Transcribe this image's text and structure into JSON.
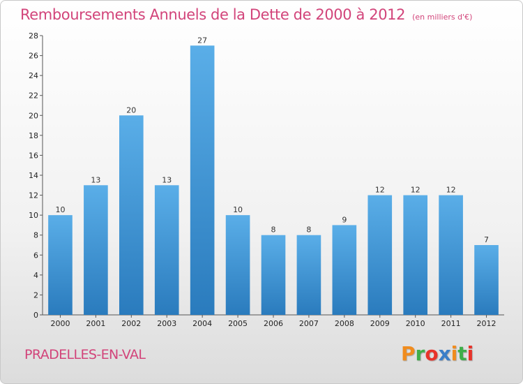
{
  "header": {
    "title": "Remboursements Annuels de la Dette de 2000 à 2012",
    "subtitle": "(en milliers d'€)"
  },
  "footer": {
    "commune": "PRADELLES-EN-VAL",
    "logo_text": "Proxiti",
    "logo_colors": [
      "#f08c1e",
      "#3fae49",
      "#e8332a",
      "#3a7ec8",
      "#f08c1e",
      "#3fae49",
      "#e8332a"
    ]
  },
  "chart_data": {
    "type": "bar",
    "title": "Remboursements Annuels de la Dette de 2000 à 2012",
    "xlabel": "",
    "ylabel": "",
    "categories": [
      "2000",
      "2001",
      "2002",
      "2003",
      "2004",
      "2005",
      "2006",
      "2007",
      "2008",
      "2009",
      "2010",
      "2011",
      "2012"
    ],
    "values": [
      10,
      13,
      20,
      13,
      27,
      10,
      8,
      8,
      9,
      12,
      12,
      12,
      7
    ],
    "ylim": [
      0,
      28
    ],
    "yticks": [
      0,
      2,
      4,
      6,
      8,
      10,
      12,
      14,
      16,
      18,
      20,
      22,
      24,
      26,
      28
    ],
    "grid": false,
    "bar_color_top": "#5aaee8",
    "bar_color_bottom": "#2a7bbd"
  }
}
